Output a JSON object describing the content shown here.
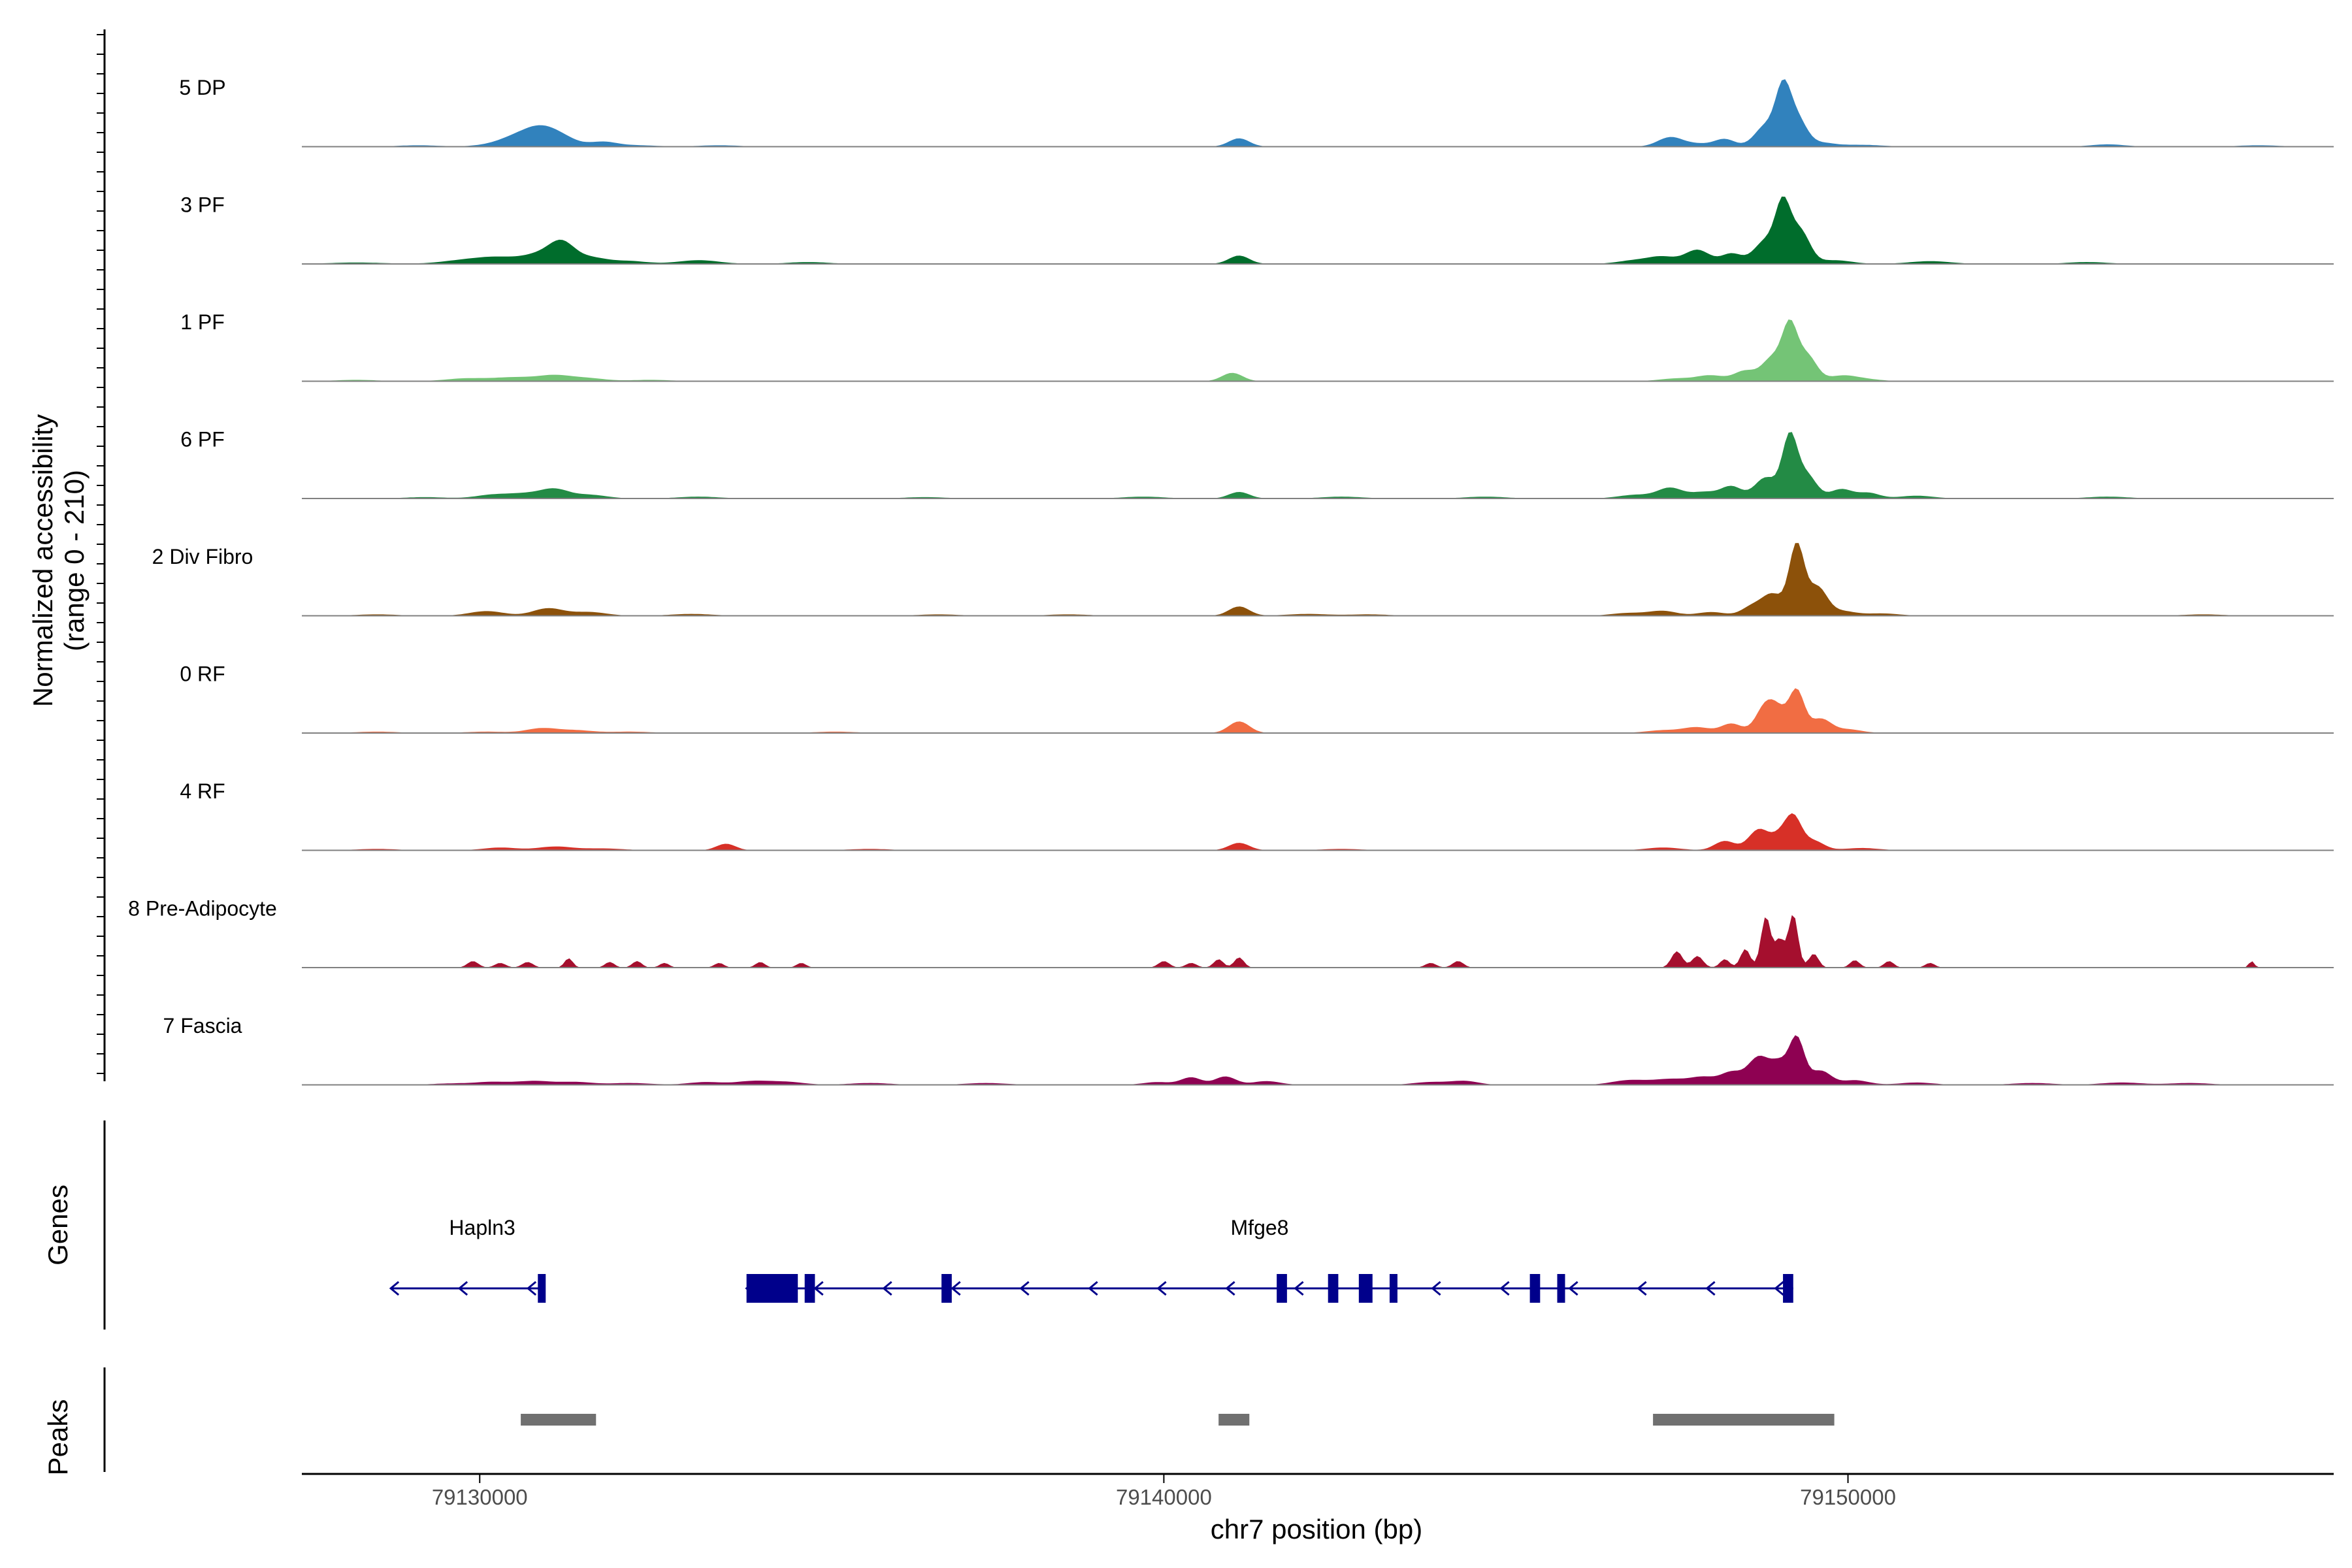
{
  "chart_data": {
    "type": "area",
    "title": "",
    "xlabel": "chr7 position (bp)",
    "ylabel": "Normalized accessibility",
    "ylabel_range": "(range 0 - 210)",
    "ylim": [
      0,
      210
    ],
    "xlim": [
      79127400,
      79157100
    ],
    "x_ticks": [
      79130000,
      79140000,
      79150000
    ],
    "x_tick_labels": [
      "79130000",
      "79140000",
      "79150000"
    ],
    "tracks": [
      {
        "name": "5 DP",
        "color": "#3182BD",
        "peaks": [
          [
            79129100,
            3,
            300
          ],
          [
            79130300,
            5,
            300
          ],
          [
            79130600,
            20,
            260
          ],
          [
            79130900,
            28,
            220
          ],
          [
            79131200,
            18,
            220
          ],
          [
            79131800,
            10,
            200
          ],
          [
            79132300,
            3,
            300
          ],
          [
            79133500,
            3,
            300
          ],
          [
            79141100,
            18,
            150
          ],
          [
            79147400,
            20,
            180
          ],
          [
            79147800,
            6,
            200
          ],
          [
            79148200,
            16,
            150
          ],
          [
            79148800,
            45,
            160
          ],
          [
            79149050,
            110,
            110
          ],
          [
            79149250,
            60,
            140
          ],
          [
            79149600,
            8,
            200
          ],
          [
            79150200,
            4,
            300
          ],
          [
            79153800,
            5,
            250
          ],
          [
            79156000,
            3,
            300
          ]
        ]
      },
      {
        "name": "3 PF",
        "color": "#006D2C",
        "peaks": [
          [
            79128200,
            3,
            400
          ],
          [
            79129800,
            8,
            350
          ],
          [
            79130300,
            12,
            300
          ],
          [
            79130900,
            20,
            250
          ],
          [
            79131200,
            38,
            180
          ],
          [
            79131600,
            14,
            250
          ],
          [
            79132200,
            6,
            250
          ],
          [
            79133200,
            8,
            300
          ],
          [
            79134800,
            4,
            300
          ],
          [
            79141100,
            18,
            150
          ],
          [
            79146900,
            8,
            250
          ],
          [
            79147300,
            14,
            200
          ],
          [
            79147800,
            30,
            180
          ],
          [
            79148300,
            22,
            150
          ],
          [
            79148800,
            50,
            170
          ],
          [
            79149050,
            115,
            110
          ],
          [
            79149300,
            70,
            140
          ],
          [
            79149800,
            8,
            250
          ],
          [
            79151200,
            6,
            300
          ],
          [
            79153500,
            4,
            300
          ]
        ]
      },
      {
        "name": "1 PF",
        "color": "#74C476",
        "peaks": [
          [
            79128200,
            3,
            300
          ],
          [
            79129800,
            6,
            300
          ],
          [
            79130500,
            8,
            300
          ],
          [
            79131100,
            12,
            250
          ],
          [
            79131600,
            6,
            250
          ],
          [
            79132500,
            3,
            300
          ],
          [
            79141000,
            18,
            150
          ],
          [
            79147500,
            6,
            250
          ],
          [
            79148000,
            12,
            200
          ],
          [
            79148500,
            22,
            160
          ],
          [
            79148900,
            50,
            150
          ],
          [
            79149150,
            110,
            110
          ],
          [
            79149400,
            55,
            140
          ],
          [
            79149900,
            10,
            200
          ],
          [
            79150200,
            5,
            250
          ]
        ]
      },
      {
        "name": "6 PF",
        "color": "#238B45",
        "peaks": [
          [
            79129200,
            3,
            300
          ],
          [
            79130200,
            8,
            250
          ],
          [
            79130700,
            10,
            250
          ],
          [
            79131100,
            18,
            200
          ],
          [
            79131600,
            8,
            250
          ],
          [
            79133200,
            4,
            300
          ],
          [
            79136500,
            3,
            300
          ],
          [
            79139700,
            4,
            300
          ],
          [
            79141100,
            14,
            150
          ],
          [
            79142600,
            4,
            300
          ],
          [
            79144700,
            4,
            300
          ],
          [
            79146900,
            8,
            250
          ],
          [
            79147400,
            22,
            180
          ],
          [
            79147900,
            14,
            200
          ],
          [
            79148300,
            25,
            150
          ],
          [
            79148800,
            45,
            160
          ],
          [
            79149150,
            130,
            110
          ],
          [
            79149400,
            50,
            140
          ],
          [
            79149900,
            20,
            160
          ],
          [
            79150300,
            12,
            160
          ],
          [
            79151000,
            6,
            250
          ],
          [
            79153800,
            4,
            300
          ]
        ]
      },
      {
        "name": "2 Div Fibro",
        "color": "#8C510A",
        "peaks": [
          [
            79128500,
            3,
            300
          ],
          [
            79130100,
            10,
            250
          ],
          [
            79131000,
            16,
            220
          ],
          [
            79131600,
            8,
            250
          ],
          [
            79133100,
            4,
            300
          ],
          [
            79136700,
            3,
            300
          ],
          [
            79138600,
            3,
            300
          ],
          [
            79141100,
            20,
            150
          ],
          [
            79142100,
            4,
            300
          ],
          [
            79143000,
            3,
            300
          ],
          [
            79146800,
            6,
            250
          ],
          [
            79147300,
            10,
            200
          ],
          [
            79148000,
            8,
            200
          ],
          [
            79148600,
            20,
            150
          ],
          [
            79148900,
            45,
            150
          ],
          [
            79149250,
            150,
            110
          ],
          [
            79149550,
            60,
            140
          ],
          [
            79149900,
            10,
            200
          ],
          [
            79150500,
            5,
            250
          ],
          [
            79155200,
            3,
            300
          ]
        ]
      },
      {
        "name": "0 RF",
        "color": "#F16D43",
        "peaks": [
          [
            79128500,
            3,
            300
          ],
          [
            79130100,
            3,
            300
          ],
          [
            79130900,
            10,
            220
          ],
          [
            79131400,
            6,
            250
          ],
          [
            79132200,
            3,
            300
          ],
          [
            79135200,
            3,
            300
          ],
          [
            79141100,
            25,
            150
          ],
          [
            79147300,
            6,
            250
          ],
          [
            79147800,
            12,
            200
          ],
          [
            79148300,
            20,
            150
          ],
          [
            79148800,
            60,
            140
          ],
          [
            79149000,
            35,
            120
          ],
          [
            79149250,
            90,
            110
          ],
          [
            79149600,
            30,
            150
          ],
          [
            79150000,
            8,
            200
          ]
        ]
      },
      {
        "name": "4 RF",
        "color": "#D73027",
        "peaks": [
          [
            79128500,
            3,
            300
          ],
          [
            79130300,
            6,
            250
          ],
          [
            79131100,
            8,
            250
          ],
          [
            79131800,
            4,
            300
          ],
          [
            79133600,
            14,
            140
          ],
          [
            79135700,
            3,
            300
          ],
          [
            79141100,
            16,
            150
          ],
          [
            79142600,
            3,
            300
          ],
          [
            79147300,
            6,
            250
          ],
          [
            79148200,
            20,
            150
          ],
          [
            79148700,
            45,
            150
          ],
          [
            79149000,
            25,
            120
          ],
          [
            79149200,
            70,
            120
          ],
          [
            79149500,
            20,
            150
          ],
          [
            79150200,
            5,
            250
          ]
        ]
      },
      {
        "name": "8 Pre-Adipocyte",
        "color": "#A50F2E",
        "peaks": [
          [
            79129900,
            14,
            80
          ],
          [
            79130300,
            10,
            80
          ],
          [
            79130700,
            12,
            80
          ],
          [
            79131300,
            20,
            60
          ],
          [
            79131900,
            12,
            70
          ],
          [
            79132300,
            14,
            70
          ],
          [
            79132700,
            10,
            70
          ],
          [
            79133500,
            10,
            70
          ],
          [
            79134100,
            12,
            70
          ],
          [
            79134700,
            10,
            70
          ],
          [
            79140000,
            14,
            80
          ],
          [
            79140400,
            10,
            80
          ],
          [
            79140800,
            18,
            70
          ],
          [
            79141100,
            22,
            70
          ],
          [
            79143900,
            10,
            80
          ],
          [
            79144300,
            14,
            80
          ],
          [
            79147500,
            35,
            80
          ],
          [
            79147800,
            25,
            80
          ],
          [
            79148200,
            18,
            70
          ],
          [
            79148500,
            40,
            70
          ],
          [
            79148800,
            110,
            70
          ],
          [
            79149000,
            60,
            70
          ],
          [
            79149200,
            115,
            70
          ],
          [
            79149500,
            30,
            70
          ],
          [
            79150100,
            16,
            70
          ],
          [
            79150600,
            14,
            70
          ],
          [
            79151200,
            10,
            70
          ],
          [
            79155900,
            14,
            40
          ]
        ]
      },
      {
        "name": "7 Fascia",
        "color": "#8E0152",
        "peaks": [
          [
            79129600,
            3,
            300
          ],
          [
            79130200,
            6,
            250
          ],
          [
            79130800,
            8,
            250
          ],
          [
            79131400,
            6,
            250
          ],
          [
            79132200,
            4,
            300
          ],
          [
            79133300,
            6,
            250
          ],
          [
            79134000,
            8,
            250
          ],
          [
            79134500,
            6,
            250
          ],
          [
            79135700,
            4,
            300
          ],
          [
            79137400,
            4,
            300
          ],
          [
            79139900,
            6,
            200
          ],
          [
            79140400,
            16,
            150
          ],
          [
            79140900,
            18,
            150
          ],
          [
            79141500,
            8,
            200
          ],
          [
            79143900,
            6,
            250
          ],
          [
            79144400,
            8,
            200
          ],
          [
            79146800,
            10,
            250
          ],
          [
            79147400,
            12,
            250
          ],
          [
            79147900,
            16,
            200
          ],
          [
            79148300,
            25,
            150
          ],
          [
            79148700,
            60,
            160
          ],
          [
            79149000,
            40,
            120
          ],
          [
            79149250,
            100,
            110
          ],
          [
            79149600,
            30,
            150
          ],
          [
            79150100,
            10,
            200
          ],
          [
            79151000,
            5,
            250
          ],
          [
            79152700,
            4,
            300
          ],
          [
            79154000,
            5,
            300
          ],
          [
            79155000,
            4,
            300
          ]
        ]
      }
    ],
    "genes_track_label": "Genes",
    "genes": [
      {
        "name": "Hapln3",
        "strand": "-",
        "start": 79128700,
        "end": 79130950,
        "exons": [
          [
            79130850,
            79130950
          ]
        ]
      },
      {
        "name": "Mfge8",
        "strand": "-",
        "start": 79133900,
        "end": 79149200,
        "exons": [
          [
            79133900,
            79134650
          ],
          [
            79134750,
            79134900
          ],
          [
            79136750,
            79136900
          ],
          [
            79141650,
            79141800
          ],
          [
            79142400,
            79142550
          ],
          [
            79142850,
            79143050
          ],
          [
            79143300,
            79143400
          ],
          [
            79145350,
            79145500
          ],
          [
            79145750,
            79145850
          ],
          [
            79149050,
            79149200
          ]
        ]
      }
    ],
    "peaks_track_label": "Peaks",
    "peak_regions": [
      [
        79130600,
        79131700
      ],
      [
        79140800,
        79141250
      ],
      [
        79147150,
        79149800
      ]
    ]
  },
  "colors": {
    "gene_color": "#00008B",
    "peak_color": "#707070",
    "baseline_color": "#808080",
    "axis_color": "#000000"
  }
}
